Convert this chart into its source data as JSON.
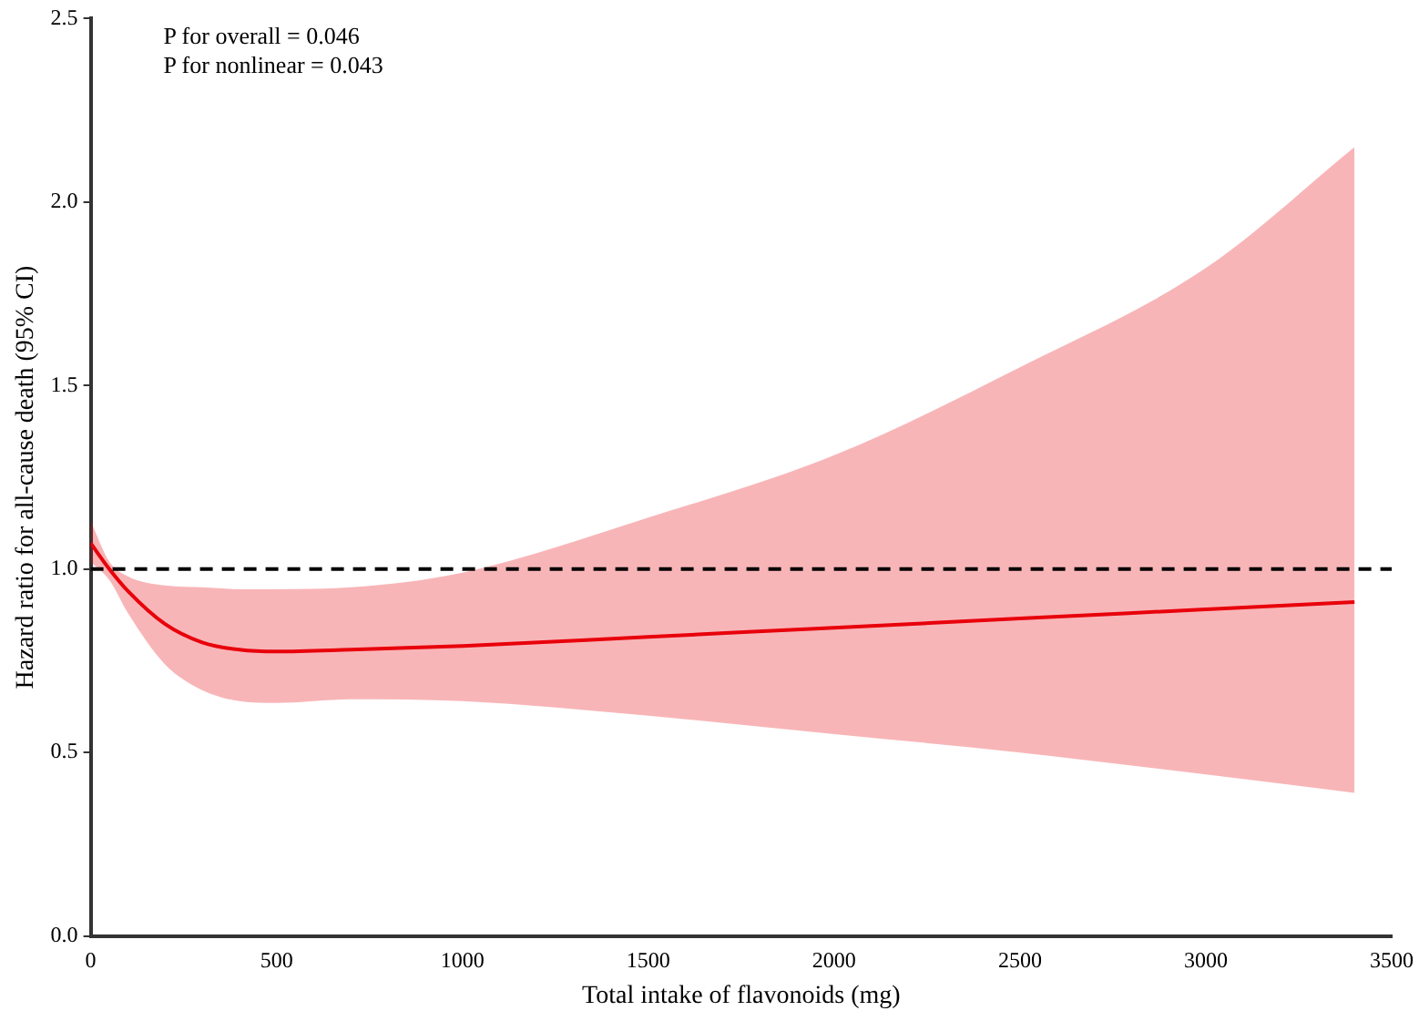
{
  "chart_data": {
    "type": "line",
    "xlabel": "Total intake of flavonoids (mg)",
    "ylabel": "Hazard ratio for all-cause death (95% CI)",
    "annotations": [
      "P for overall = 0.046",
      "P for nonlinear = 0.043"
    ],
    "x": [
      0,
      50,
      100,
      200,
      300,
      400,
      500,
      700,
      1000,
      1500,
      2000,
      2500,
      3000,
      3400
    ],
    "series": [
      {
        "color": "#e8000b",
        "values": [
          1.07,
          1.0,
          0.94,
          0.85,
          0.8,
          0.78,
          0.775,
          0.78,
          0.79,
          0.815,
          0.84,
          0.865,
          0.89,
          0.91
        ],
        "lower": [
          1.02,
          0.97,
          0.88,
          0.74,
          0.67,
          0.64,
          0.635,
          0.645,
          0.64,
          0.6,
          0.55,
          0.5,
          0.44,
          0.39
        ],
        "upper": [
          1.13,
          1.02,
          0.98,
          0.955,
          0.95,
          0.945,
          0.945,
          0.95,
          0.99,
          1.14,
          1.31,
          1.55,
          1.82,
          2.15
        ]
      }
    ],
    "xlim": [
      0,
      3500
    ],
    "xticks": [
      0,
      500,
      1000,
      1500,
      2000,
      2500,
      3000,
      3500
    ],
    "ylim": [
      0,
      2.5
    ],
    "yticks": [
      {
        "value": 0,
        "label": "0.0"
      },
      {
        "value": 0.5,
        "label": "0.5"
      },
      {
        "value": 1,
        "label": "1.0"
      },
      {
        "value": 1.5,
        "label": "1.5"
      },
      {
        "value": 2,
        "label": "2.0"
      },
      {
        "value": 2.5,
        "label": "2.5"
      }
    ],
    "ref_lines": [
      {
        "axis": "y",
        "value": 1,
        "color": "#000000",
        "line_style": "dashed"
      }
    ],
    "grid": false,
    "legend": false,
    "marker": "none",
    "line_style": "solid"
  }
}
